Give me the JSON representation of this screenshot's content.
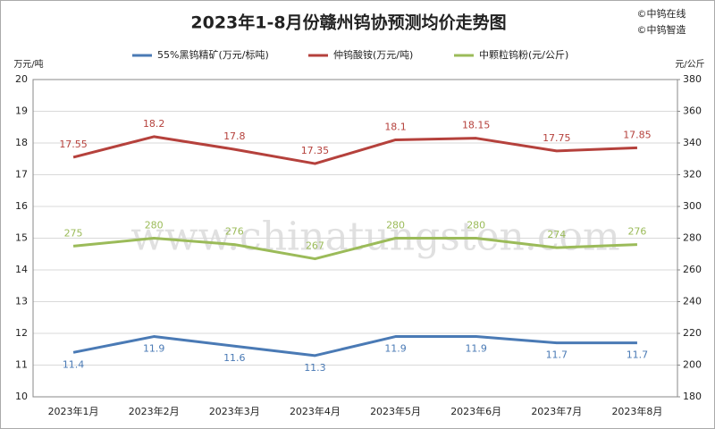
{
  "chart_data": {
    "type": "line",
    "title": "2023年1-8月份赣州钨协预测均价走势图",
    "copyright": [
      "©中钨在线",
      "©中钨智造"
    ],
    "watermark": "www.chinatungsten.com",
    "y_label": "万元/吨",
    "y2_label": "元/公斤",
    "categories": [
      "2023年1月",
      "2023年2月",
      "2023年3月",
      "2023年4月",
      "2023年5月",
      "2023年6月",
      "2023年7月",
      "2023年8月"
    ],
    "ylim": [
      10,
      20
    ],
    "yticks": [
      10,
      11,
      12,
      13,
      14,
      15,
      16,
      17,
      18,
      19,
      20
    ],
    "y2lim": [
      180,
      380
    ],
    "y2ticks": [
      180,
      200,
      220,
      240,
      260,
      280,
      300,
      320,
      340,
      360,
      380
    ],
    "grid": true,
    "legend": "top",
    "series": [
      {
        "name": "55%黑钨精矿(万元/标吨)",
        "color": "#4a7ab5",
        "label_pos": "below",
        "values": [
          11.4,
          11.9,
          11.6,
          11.3,
          11.9,
          11.9,
          11.7,
          11.7
        ]
      },
      {
        "name": "仲钨酸铵(万元/吨)",
        "color": "#b5413c",
        "label_pos": "above",
        "values": [
          17.55,
          18.2,
          17.8,
          17.35,
          18.1,
          18.15,
          17.75,
          17.85
        ]
      },
      {
        "name": "中颗粒钨粉(元/公斤)",
        "color": "#9bbb59",
        "axis": "y2",
        "label_pos": "above",
        "values": [
          275,
          280,
          276,
          267,
          280,
          280,
          274,
          276
        ]
      }
    ]
  }
}
